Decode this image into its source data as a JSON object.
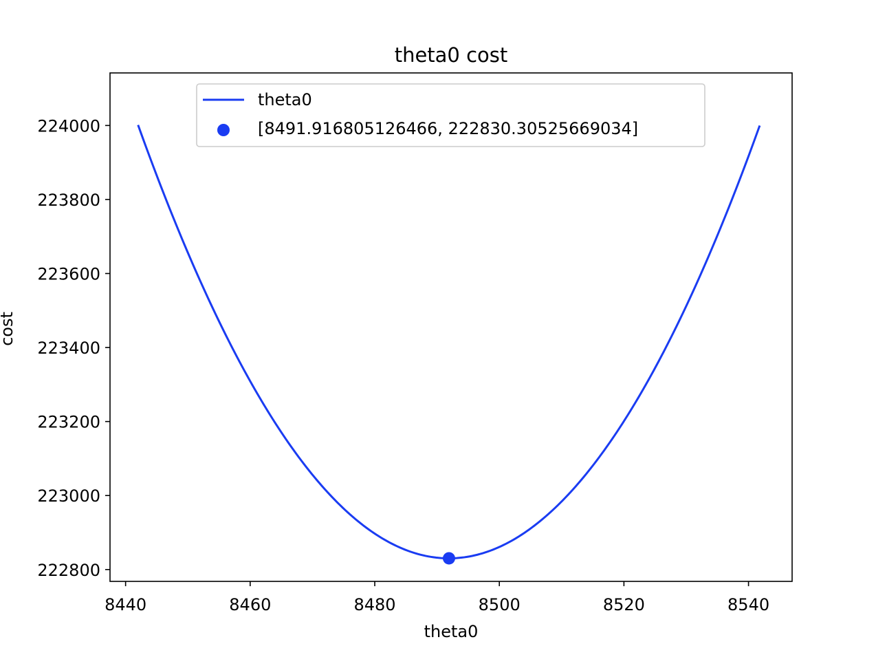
{
  "chart_data": {
    "type": "line",
    "title": "theta0 cost",
    "xlabel": "theta0",
    "ylabel": "cost",
    "xlim": [
      8437.5,
      8547
    ],
    "ylim": [
      222768,
      224142
    ],
    "xticks": [
      8440,
      8460,
      8480,
      8500,
      8520,
      8540
    ],
    "yticks": [
      222800,
      223000,
      223200,
      223400,
      223600,
      223800,
      224000
    ],
    "grid": false,
    "legend_position": "top-center",
    "curve": {
      "kind": "quadratic",
      "vertex_x": 8491.916805126466,
      "vertex_y": 222830.30525669034,
      "coefficient": 0.47,
      "x_min": 8442,
      "x_max": 8541.8
    },
    "series": [
      {
        "name": "theta0",
        "type": "line",
        "color": "#1a3cf2"
      },
      {
        "name": "[8491.916805126466, 222830.30525669034]",
        "type": "scatter",
        "color": "#1a3cf2",
        "points": [
          [
            8491.916805126466,
            222830.30525669034
          ]
        ]
      }
    ]
  }
}
